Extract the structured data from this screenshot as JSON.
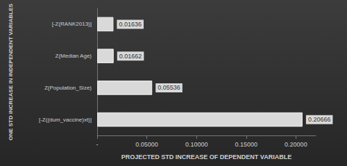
{
  "chart_data": {
    "type": "bar",
    "orientation": "horizontal",
    "categories": [
      "[-Z(RANK2013)]",
      "Z(Median Age)",
      "Z(Population_Size)",
      "[-Z((dum_vaccine)xt)]"
    ],
    "values": [
      0.01636,
      0.01662,
      0.05536,
      0.20666
    ],
    "color": "#d9d9d9",
    "x_label": "PROJECTED STD INCREASE OF DEPENDENT VARIABLE",
    "y_label": "ONE STD INCREASE IN INDEPENDENT VARIABLES",
    "xlim": [
      0,
      0.22
    ],
    "xticks": [
      {
        "value": 0,
        "label": "-"
      },
      {
        "value": 0.05,
        "label": "0.05000"
      },
      {
        "value": 0.1,
        "label": "0.10000"
      },
      {
        "value": 0.15,
        "label": "0.15000"
      },
      {
        "value": 0.2,
        "label": "0.20000"
      }
    ],
    "grid": false,
    "data_labels": true
  }
}
